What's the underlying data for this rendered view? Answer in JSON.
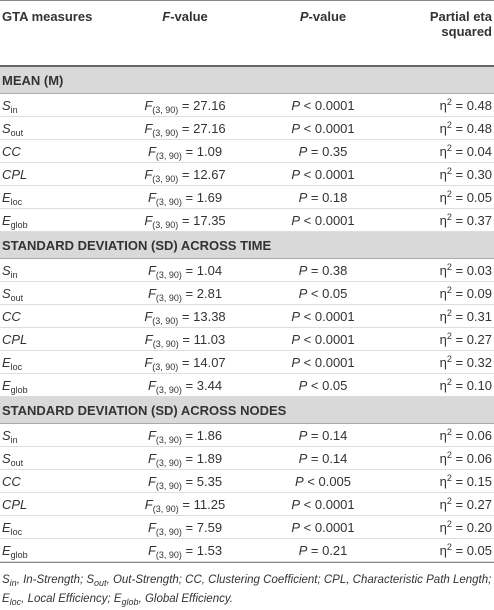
{
  "header": {
    "measures": "GTA measures",
    "value_suffix": "-value",
    "eta": "Partial eta squared"
  },
  "symbols": {
    "F": "F",
    "df": "(3, 90)",
    "P": "P",
    "eta": "η",
    "exp": "2",
    "eq": "="
  },
  "sections": [
    {
      "title": "MEAN (M)",
      "rows": [
        {
          "measure": {
            "base": "S",
            "sub": "in"
          },
          "f": "27.16",
          "op": "<",
          "p": "0.0001",
          "eta": "0.48"
        },
        {
          "measure": {
            "base": "S",
            "sub": "out"
          },
          "f": "27.16",
          "op": "<",
          "p": "0.0001",
          "eta": "0.48"
        },
        {
          "measure": {
            "base": "CC"
          },
          "f": "1.09",
          "op": "=",
          "p": "0.35",
          "eta": "0.04"
        },
        {
          "measure": {
            "base": "CPL"
          },
          "f": "12.67",
          "op": "<",
          "p": "0.0001",
          "eta": "0.30"
        },
        {
          "measure": {
            "base": "E",
            "sub": "loc"
          },
          "f": "1.69",
          "op": "=",
          "p": "0.18",
          "eta": "0.05"
        },
        {
          "measure": {
            "base": "E",
            "sub": "glob"
          },
          "f": "17.35",
          "op": "<",
          "p": "0.0001",
          "eta": "0.37"
        }
      ]
    },
    {
      "title": "STANDARD DEVIATION (SD) ACROSS TIME",
      "rows": [
        {
          "measure": {
            "base": "S",
            "sub": "in"
          },
          "f": "1.04",
          "op": "=",
          "p": "0.38",
          "eta": "0.03"
        },
        {
          "measure": {
            "base": "S",
            "sub": "out"
          },
          "f": "2.81",
          "op": "<",
          "p": "0.05",
          "eta": "0.09"
        },
        {
          "measure": {
            "base": "CC"
          },
          "f": "13.38",
          "op": "<",
          "p": "0.0001",
          "eta": "0.31"
        },
        {
          "measure": {
            "base": "CPL"
          },
          "f": "11.03",
          "op": "<",
          "p": "0.0001",
          "eta": "0.27"
        },
        {
          "measure": {
            "base": "E",
            "sub": "loc"
          },
          "f": "14.07",
          "op": "<",
          "p": "0.0001",
          "eta": "0.32"
        },
        {
          "measure": {
            "base": "E",
            "sub": "glob"
          },
          "f": "3.44",
          "op": "<",
          "p": "0.05",
          "eta": "0.10"
        }
      ]
    },
    {
      "title": "STANDARD DEVIATION (SD) ACROSS NODES",
      "rows": [
        {
          "measure": {
            "base": "S",
            "sub": "in"
          },
          "f": "1.86",
          "op": "=",
          "p": "0.14",
          "eta": "0.06"
        },
        {
          "measure": {
            "base": "S",
            "sub": "out"
          },
          "f": "1.89",
          "op": "=",
          "p": "0.14",
          "eta": "0.06"
        },
        {
          "measure": {
            "base": "CC"
          },
          "f": "5.35",
          "op": "<",
          "p": "0.005",
          "eta": "0.15"
        },
        {
          "measure": {
            "base": "CPL"
          },
          "f": "11.25",
          "op": "<",
          "p": "0.0001",
          "eta": "0.27"
        },
        {
          "measure": {
            "base": "E",
            "sub": "loc"
          },
          "f": "7.59",
          "op": "<",
          "p": "0.0001",
          "eta": "0.20"
        },
        {
          "measure": {
            "base": "E",
            "sub": "glob"
          },
          "f": "1.53",
          "op": "=",
          "p": "0.21",
          "eta": "0.05"
        }
      ]
    }
  ],
  "footnote": [
    {
      "text": "S"
    },
    {
      "sub": "in"
    },
    {
      "text": ", In-Strength; "
    },
    {
      "text": "S"
    },
    {
      "sub": "out"
    },
    {
      "text": ", Out-Strength; CC, Clustering Coefficient; CPL, Characteristic Path Length; "
    },
    {
      "text": "E"
    },
    {
      "sub": "loc"
    },
    {
      "text": ", Local Efficiency; "
    },
    {
      "text": "E"
    },
    {
      "sub": "glob"
    },
    {
      "text": ", Global Efficiency."
    }
  ]
}
